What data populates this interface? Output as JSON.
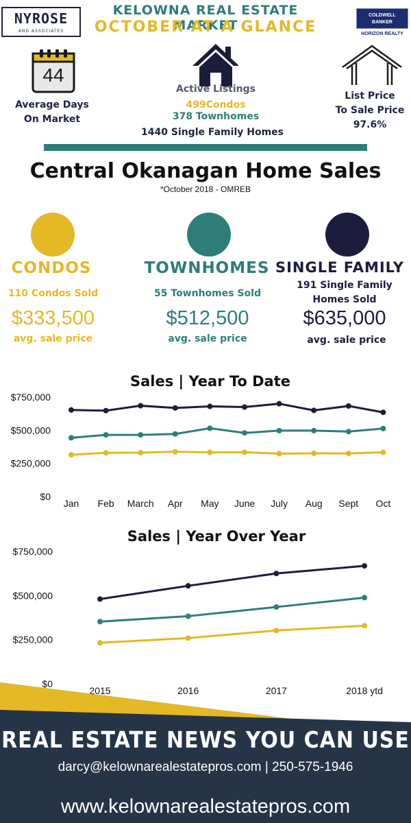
{
  "header": {
    "logo_left_main": "NYROSE",
    "logo_left_sub": "AND ASSOCIATES",
    "title_line1": "KELOWNA REAL ESTATE MARKET",
    "title_line2": "OCTOBER AT A GLANCE",
    "logo_right_line1": "COLDWELL",
    "logo_right_line2": "BANKER",
    "logo_right_sub": "HORIZON REALTY"
  },
  "stats": {
    "avg_days_value": "44",
    "avg_days_label_1": "Average Days",
    "avg_days_label_2": "On Market",
    "active_title": "Active Listings",
    "active_condos": "499Condos",
    "active_townhomes": "378 Townhomes",
    "active_single": "1440 Single Family Homes",
    "ratio_label_1": "List Price",
    "ratio_label_2": "To Sale Price",
    "ratio_value": "97.6%",
    "icons": [
      "calendar-icon",
      "house-icon",
      "house-outline-icon"
    ]
  },
  "main": {
    "title": "Central Okanagan Home Sales",
    "subtitle": "*October 2018 - OMREB"
  },
  "categories": {
    "condos": {
      "name": "CONDOS",
      "sold": "110 Condos Sold",
      "price": "$333,500",
      "avg_label": "avg. sale price",
      "color": "#e5b825"
    },
    "townhomes": {
      "name": "TOWNHOMES",
      "sold": "55 Townhomes Sold",
      "price": "$512,500",
      "avg_label": "avg. sale price",
      "color": "#2d7d7a"
    },
    "single": {
      "name": "SINGLE FAMILY",
      "sold_1": "191 Single Family",
      "sold_2": "Homes Sold",
      "price": "$635,000",
      "avg_label": "avg. sale price",
      "color": "#1c1c3c"
    }
  },
  "chart_data": [
    {
      "type": "line",
      "title": "Sales | Year To Date",
      "categories": [
        "Jan",
        "Feb",
        "March",
        "Apr",
        "May",
        "June",
        "July",
        "Aug",
        "Sept",
        "Oct"
      ],
      "ylim": [
        0,
        750000
      ],
      "yticks": [
        "$0",
        "$250,000",
        "$500,000",
        "$750,000"
      ],
      "series": [
        {
          "color": "#1c1c3c",
          "values": [
            653000,
            648000,
            685000,
            668000,
            680000,
            675000,
            700000,
            650000,
            683000,
            635000
          ]
        },
        {
          "color": "#2d7d7a",
          "values": [
            443000,
            465000,
            465000,
            472000,
            515000,
            480000,
            497000,
            497000,
            490000,
            512500
          ]
        },
        {
          "color": "#e5b825",
          "values": [
            315000,
            330000,
            331000,
            338000,
            333000,
            334000,
            324000,
            326000,
            325000,
            333500
          ]
        }
      ]
    },
    {
      "type": "line",
      "title": "Sales | Year Over Year",
      "categories": [
        "2015",
        "2016",
        "2017",
        "2018 ytd"
      ],
      "ylim": [
        0,
        750000
      ],
      "yticks": [
        "$0",
        "$250,000",
        "$500,000",
        "$750,000"
      ],
      "series": [
        {
          "color": "#1c1c3c",
          "values": [
            480000,
            555000,
            625000,
            668000
          ]
        },
        {
          "color": "#2d7d7a",
          "values": [
            352000,
            383000,
            435000,
            488000
          ]
        },
        {
          "color": "#e5b825",
          "values": [
            232000,
            259000,
            302000,
            329000
          ]
        }
      ]
    }
  ],
  "footer": {
    "headline": "REAL ESTATE NEWS YOU CAN USE",
    "contact": "darcy@kelownarealestatepros.com | 250-575-1946",
    "website": "www.kelownarealestatepros.com"
  }
}
